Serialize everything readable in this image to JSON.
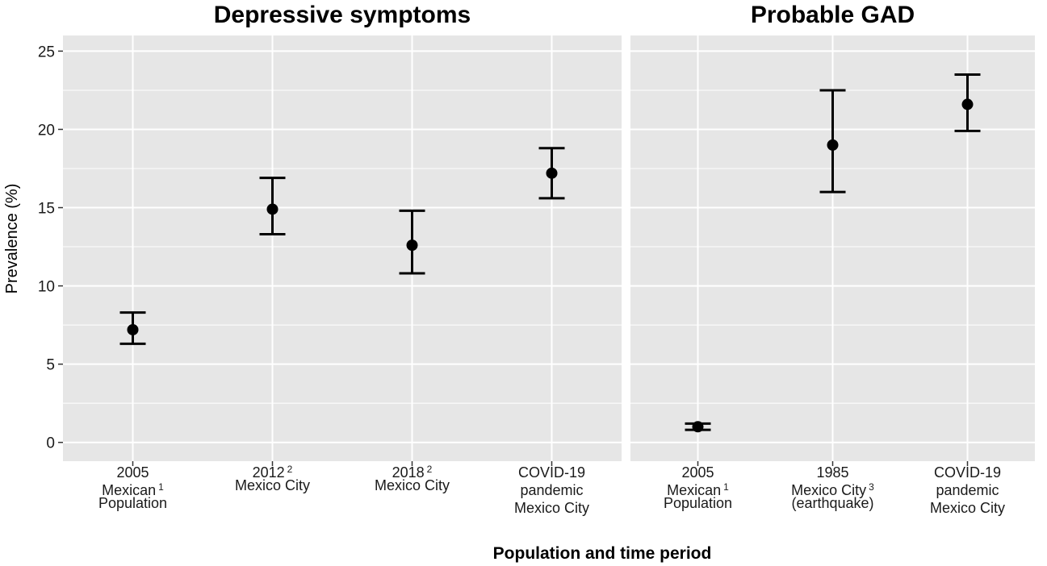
{
  "chart_data": {
    "type": "scatter",
    "chart_kind": "point estimates with error bars (faceted)",
    "xlabel": "Population and time period",
    "ylabel": "Prevalence (%)",
    "ylim": [
      -1.2,
      26
    ],
    "y_ticks": [
      0,
      5,
      10,
      15,
      20,
      25
    ],
    "grid": true,
    "legend": "none",
    "colors": {
      "panel_bg": "#e6e6e6",
      "grid": "#ffffff",
      "mark": "#000000"
    },
    "panels": [
      {
        "title": "Depressive symptoms",
        "points": [
          {
            "label": [
              "2005",
              "Mexican",
              "Population"
            ],
            "sup": "1",
            "sup_line": 1,
            "value": 7.2,
            "lower": 6.3,
            "upper": 8.3
          },
          {
            "label": [
              "2012",
              "Mexico City"
            ],
            "sup": "2",
            "sup_line": 0,
            "value": 14.9,
            "lower": 13.3,
            "upper": 16.9
          },
          {
            "label": [
              "2018",
              "Mexico City"
            ],
            "sup": "2",
            "sup_line": 0,
            "value": 12.6,
            "lower": 10.8,
            "upper": 14.8
          },
          {
            "label": [
              "COVID-19",
              "pandemic",
              "Mexico City"
            ],
            "sup": "",
            "sup_line": -1,
            "value": 17.2,
            "lower": 15.6,
            "upper": 18.8
          }
        ]
      },
      {
        "title": "Probable GAD",
        "points": [
          {
            "label": [
              "2005",
              "Mexican",
              "Population"
            ],
            "sup": "1",
            "sup_line": 1,
            "value": 1.0,
            "lower": 0.8,
            "upper": 1.2
          },
          {
            "label": [
              "1985",
              "Mexico City",
              "(earthquake)"
            ],
            "sup": "3",
            "sup_line": 1,
            "value": 19.0,
            "lower": 16.0,
            "upper": 22.5
          },
          {
            "label": [
              "COVID-19",
              "pandemic",
              "Mexico City"
            ],
            "sup": "",
            "sup_line": -1,
            "value": 21.6,
            "lower": 19.9,
            "upper": 23.5
          }
        ]
      }
    ]
  }
}
